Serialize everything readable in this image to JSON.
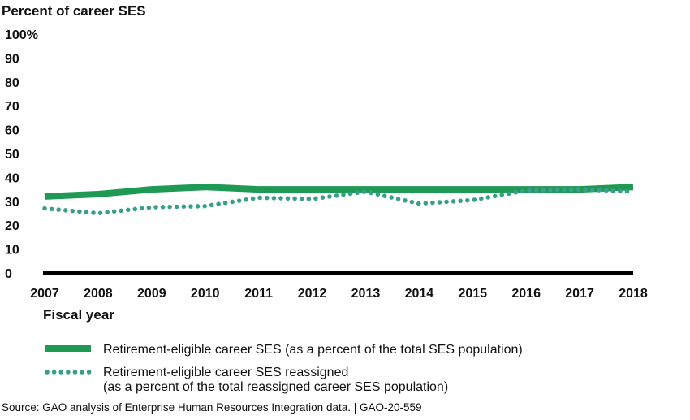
{
  "chart_data": {
    "type": "line",
    "ylabel": "Percent of career SES",
    "xlabel": "Fiscal year",
    "x": [
      "2007",
      "2008",
      "2009",
      "2010",
      "2011",
      "2012",
      "2013",
      "2014",
      "2015",
      "2016",
      "2017",
      "2018"
    ],
    "ylim": [
      0,
      100
    ],
    "yticks": [
      "0",
      "10",
      "20",
      "30",
      "40",
      "50",
      "60",
      "70",
      "80",
      "90",
      "100%"
    ],
    "grid": false,
    "legend_position": "bottom",
    "series": [
      {
        "name": "Retirement-eligible career SES (as a percent of the total SES population)",
        "style": "solid",
        "color": "#1f9a55",
        "values": [
          32,
          33,
          35,
          36,
          35,
          35,
          35,
          35,
          35,
          35,
          35,
          36
        ]
      },
      {
        "name": "Retirement-eligible career SES reassigned (as a percent of the total reassigned career SES population)",
        "style": "dotted",
        "color": "#3a9f8a",
        "values": [
          27,
          25,
          27.5,
          28,
          31.5,
          31,
          34,
          29,
          30.5,
          34.5,
          35,
          34
        ]
      }
    ]
  },
  "legend": {
    "solid_label": "Retirement-eligible career SES (as a percent of the total SES population)",
    "dotted_label_line1": "Retirement-eligible career SES reassigned",
    "dotted_label_line2": "(as a percent of the total reassigned career SES population)"
  },
  "source": "Source: GAO analysis of Enterprise Human Resources Integration data.  |  GAO-20-559"
}
